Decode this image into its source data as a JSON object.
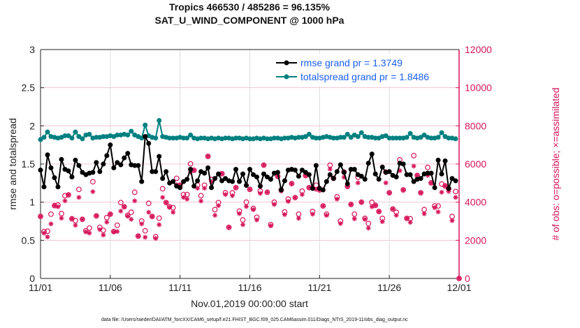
{
  "chart_data": {
    "type": "line",
    "title": [
      "Tropics 466530 / 485286 = 96.135%",
      "SAT_U_WIND_COMPONENT @ 1000 hPa"
    ],
    "xlabel": "Nov.01,2019 00:00:00 start",
    "ylabel": "rmse and totalspread",
    "ylabel_right": "# of obs: o=possible; ×=assimilated",
    "footer": "data file: /Users/raeder/DAI/ATM_forcXX/CAM6_setup/f.e21.FHIST_BGC.f09_025.CAM6assim.011/Diags_NTrS_2019-11/obs_diag_output.nc",
    "x_start": "2019-11-01 00:00",
    "x_step_hours": 6,
    "xlim": [
      "11/01",
      "12/01"
    ],
    "xticks": [
      "11/01",
      "11/06",
      "11/11",
      "11/16",
      "11/21",
      "11/26",
      "12/01"
    ],
    "ylim": [
      0,
      3
    ],
    "yticks": [
      "0",
      "0.5",
      "1",
      "1.5",
      "2",
      "2.5",
      "3"
    ],
    "ylim_right": [
      0,
      12000
    ],
    "yticks_right": [
      "0",
      "2000",
      "4000",
      "6000",
      "8000",
      "10000",
      "12000"
    ],
    "grid": true,
    "legend_placement": "top-right",
    "colors": {
      "rmse": "#000000",
      "totalspread": "#008080",
      "obs": "#d6145a",
      "legend_text": "#1a5ff0"
    },
    "series": [
      {
        "name": "rmse grand pr = 1.3749",
        "axis": "left",
        "marker": "asterisk-circle",
        "values": [
          1.42,
          1.2,
          1.62,
          1.45,
          1.32,
          1.2,
          1.56,
          1.43,
          1.41,
          1.33,
          1.55,
          1.48,
          1.39,
          1.36,
          1.38,
          1.39,
          1.52,
          1.4,
          1.5,
          1.61,
          1.75,
          1.45,
          1.52,
          1.49,
          1.58,
          1.64,
          1.49,
          1.48,
          1.48,
          1.27,
          1.86,
          1.77,
          1.4,
          1.4,
          1.6,
          1.31,
          1.4,
          1.25,
          1.27,
          1.21,
          1.19,
          1.27,
          1.3,
          1.43,
          1.21,
          1.28,
          1.4,
          1.38,
          1.45,
          1.19,
          1.31,
          1.37,
          1.28,
          1.31,
          1.28,
          1.27,
          1.43,
          1.27,
          1.37,
          1.22,
          1.43,
          1.36,
          1.33,
          1.21,
          1.37,
          1.33,
          1.3,
          1.38,
          1.39,
          1.16,
          1.28,
          1.42,
          1.43,
          1.42,
          1.34,
          1.42,
          1.39,
          1.36,
          1.18,
          1.48,
          1.18,
          1.16,
          1.27,
          1.36,
          1.31,
          1.4,
          1.49,
          1.39,
          1.24,
          1.43,
          1.43,
          1.36,
          1.34,
          1.3,
          1.51,
          1.63,
          1.37,
          1.3,
          1.46,
          1.39,
          1.4,
          1.35,
          1.33,
          1.51,
          1.5,
          1.36,
          1.36,
          1.27,
          1.3,
          1.31,
          1.37,
          1.38,
          1.38,
          1.19,
          1.55,
          1.37,
          1.54,
          1.18,
          1.31,
          1.28
        ]
      },
      {
        "name": "totalspread grand pr = 1.8486",
        "axis": "left",
        "marker": "circle",
        "values": [
          1.82,
          1.85,
          1.92,
          1.86,
          1.85,
          1.84,
          1.85,
          1.87,
          1.87,
          1.84,
          1.92,
          1.86,
          1.83,
          1.88,
          1.89,
          1.84,
          1.85,
          1.85,
          1.86,
          1.86,
          1.87,
          1.86,
          1.88,
          1.88,
          1.89,
          1.88,
          1.93,
          1.88,
          1.86,
          1.84,
          2.01,
          1.87,
          1.85,
          1.84,
          2.07,
          1.86,
          1.85,
          1.84,
          1.84,
          1.84,
          1.85,
          1.84,
          1.84,
          1.88,
          1.84,
          1.83,
          1.84,
          1.84,
          1.83,
          1.84,
          1.83,
          1.84,
          1.83,
          1.84,
          1.84,
          1.83,
          1.84,
          1.84,
          1.83,
          1.84,
          1.83,
          1.83,
          1.84,
          1.83,
          1.84,
          1.83,
          1.83,
          1.84,
          1.84,
          1.83,
          1.84,
          1.84,
          1.85,
          1.84,
          1.85,
          1.85,
          1.86,
          1.89,
          1.85,
          1.84,
          1.84,
          1.85,
          1.86,
          1.85,
          1.84,
          1.84,
          1.85,
          1.85,
          1.89,
          1.85,
          1.88,
          1.86,
          1.91,
          1.86,
          1.85,
          1.85,
          1.84,
          1.84,
          1.86,
          1.87,
          1.84,
          1.84,
          1.84,
          1.84,
          1.84,
          1.85,
          1.9,
          1.85,
          1.84,
          1.85,
          1.88,
          1.85,
          1.84,
          1.84,
          1.85,
          1.91,
          1.86,
          1.84,
          1.84,
          1.83
        ]
      },
      {
        "name": "possible",
        "axis": "right",
        "marker": "o",
        "values": [
          3250,
          2460,
          2480,
          3370,
          3820,
          3850,
          3400,
          4340,
          4380,
          3130,
          3030,
          4670,
          3100,
          2500,
          2640,
          5070,
          3280,
          2680,
          2520,
          3190,
          3370,
          2460,
          2790,
          3980,
          3760,
          3310,
          3470,
          4520,
          2220,
          3010,
          2500,
          3940,
          3250,
          2190,
          3160,
          4700,
          3980,
          3760,
          3710,
          5250,
          4890,
          4400,
          4400,
          6010,
          5670,
          4890,
          4340,
          4890,
          6400,
          5190,
          3610,
          3980,
          5490,
          4490,
          2680,
          4490,
          4760,
          3530,
          3070,
          4000,
          4670,
          3670,
          3210,
          4580,
          5940,
          4520,
          2820,
          4000,
          5350,
          4640,
          3490,
          4160,
          4970,
          4240,
          3370,
          4580,
          5390,
          4760,
          3510,
          4890,
          4640,
          3800,
          3370,
          5940,
          5250,
          4280,
          3010,
          5580,
          4820,
          3880,
          3370,
          5310,
          4000,
          3150,
          2880,
          3990,
          3830,
          3510,
          3150,
          5580,
          4490,
          3640,
          3470,
          6220,
          4640,
          3150,
          3130,
          6440,
          5400,
          4490,
          3610,
          5820,
          5010,
          3800,
          3800,
          4950,
          4850,
          4700,
          3250,
          4560,
          0
        ]
      },
      {
        "name": "assimilated",
        "axis": "right",
        "marker": "*",
        "values": [
          3250,
          2375,
          2180,
          2860,
          3820,
          3760,
          3160,
          4070,
          4380,
          3130,
          2790,
          4250,
          3100,
          2440,
          2380,
          4550,
          3280,
          2560,
          2280,
          2950,
          3370,
          2440,
          2460,
          3530,
          3760,
          3270,
          3100,
          4070,
          2220,
          2860,
          2160,
          3470,
          3250,
          2100,
          2820,
          4250,
          3980,
          3730,
          3470,
          4910,
          4890,
          4250,
          4160,
          5580,
          5670,
          4730,
          4060,
          4730,
          6400,
          5070,
          3310,
          3820,
          5490,
          4400,
          2680,
          4340,
          4760,
          3400,
          2820,
          3770,
          4670,
          3610,
          3070,
          4460,
          5940,
          4520,
          2760,
          3880,
          5350,
          4580,
          3350,
          4040,
          4970,
          4240,
          3150,
          4400,
          5390,
          4760,
          3370,
          4670,
          4640,
          3800,
          3310,
          5730,
          5250,
          4160,
          2880,
          5310,
          4820,
          3880,
          3130,
          5010,
          4000,
          3100,
          2640,
          3760,
          3830,
          3510,
          2980,
          5010,
          4490,
          3640,
          3310,
          5650,
          4640,
          3150,
          2940,
          5890,
          5400,
          4490,
          3390,
          5400,
          5010,
          3710,
          3490,
          4520,
          4850,
          4560,
          3030,
          4250,
          0
        ]
      }
    ]
  }
}
